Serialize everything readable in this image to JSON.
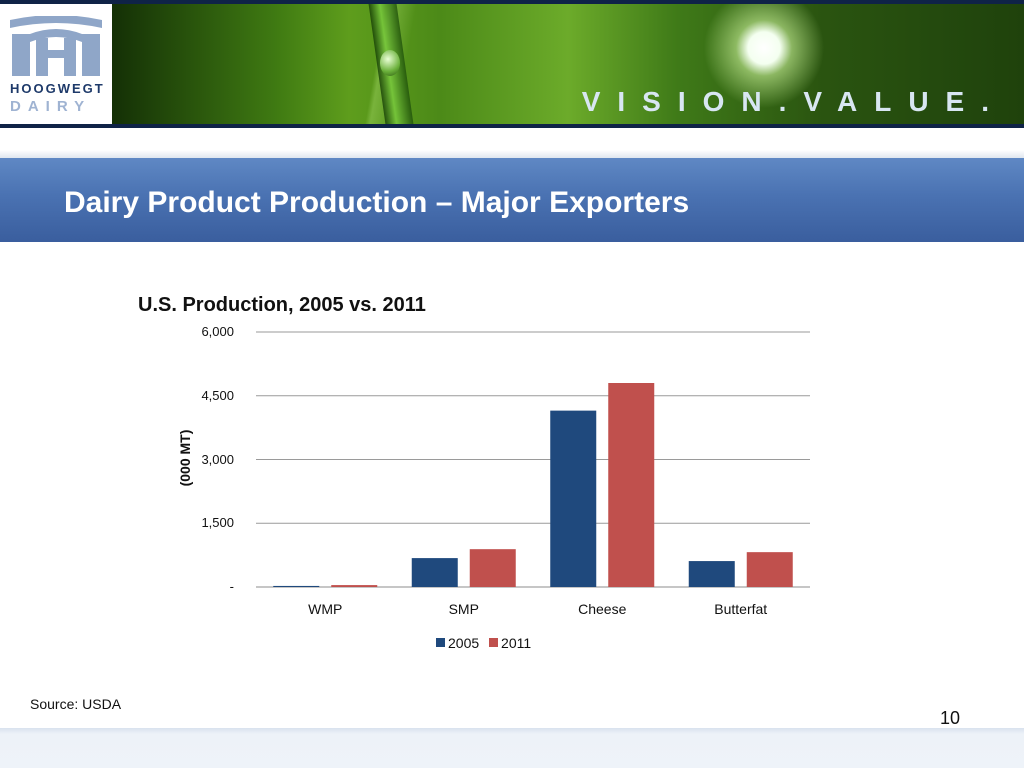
{
  "header": {
    "logo_line1": "HOOGWEGT",
    "logo_line2": "DAIRY",
    "tagline": "VISION.VALUE."
  },
  "slide": {
    "title": "Dairy Product Production – Major Exporters",
    "source": "Source: USDA",
    "page_number": "10"
  },
  "chart_data": {
    "type": "bar",
    "title": "U.S. Production, 2005 vs. 2011",
    "ylabel": "(000 MT)",
    "xlabel": "",
    "categories": [
      "WMP",
      "SMP",
      "Cheese",
      "Butterfat"
    ],
    "series": [
      {
        "name": "2005",
        "values": [
          25,
          680,
          4150,
          610
        ],
        "color": "#1f497d"
      },
      {
        "name": "2011",
        "values": [
          45,
          890,
          4800,
          820
        ],
        "color": "#c0504d"
      }
    ],
    "ylim": [
      0,
      6000
    ],
    "y_ticks": [
      0,
      1500,
      3000,
      4500,
      6000
    ],
    "y_tick_labels": [
      "-",
      "1,500",
      "3,000",
      "4,500",
      "6,000"
    ],
    "grid": true,
    "legend_position": "bottom"
  }
}
